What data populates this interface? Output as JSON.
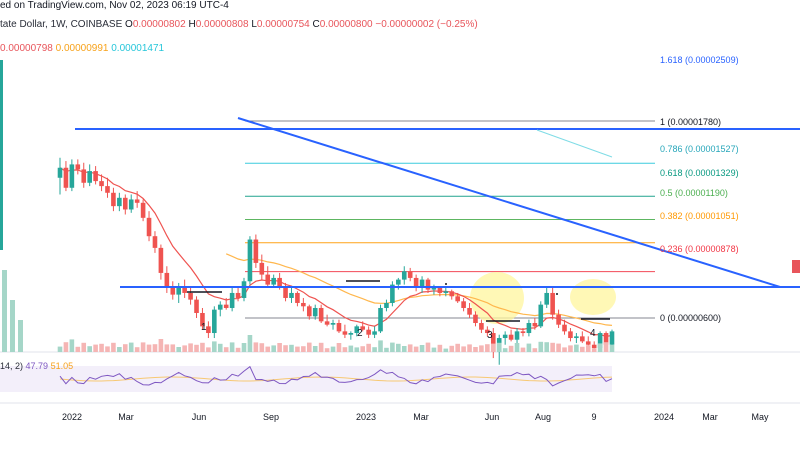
{
  "header": {
    "published": "ed on TradingView.com, Nov 02, 2023 06:19 UTC-4",
    "symbol": "tate Dollar, 1W, COINBASE",
    "ohlc": [
      {
        "label": "O",
        "value": "0.00000802"
      },
      {
        "label": "H",
        "value": "0.00000808"
      },
      {
        "label": "L",
        "value": "0.00000754"
      },
      {
        "label": "C",
        "value": "0.00000800"
      }
    ],
    "change": "−0.00000002 (−0.25%)",
    "indicators": [
      {
        "text": "0.00000798",
        "color": "#e8555b"
      },
      {
        "text": "0.00000991",
        "color": "#f7a21b"
      },
      {
        "text": "0.00001471",
        "color": "#26c6da"
      }
    ]
  },
  "colors": {
    "up": "#26a69a",
    "down": "#ef5350",
    "trend": "#2962ff",
    "ema_red": "#ef5350",
    "ema_orange": "#ffb74d",
    "rsi": "#7e57c2",
    "rsi_ma": "#f7c873",
    "highlight": "#fff59d"
  },
  "chart_data": {
    "type": "candlestick",
    "title": "",
    "x_ticks": [
      "2022",
      "Mar",
      "Jun",
      "Sep",
      "2023",
      "Mar",
      "Jun",
      "Aug",
      "9",
      "2024",
      "Mar",
      "May"
    ],
    "fib_levels": [
      {
        "label": "1.618 (0.00002509)",
        "price": 2.509e-05,
        "color": "#2962ff"
      },
      {
        "label": "1 (0.00001780)",
        "price": 1.78e-05,
        "color": "#787b86"
      },
      {
        "label": "0.786 (0.00001527)",
        "price": 1.527e-05,
        "color": "#26c6da"
      },
      {
        "label": "0.618 (0.00001329)",
        "price": 1.329e-05,
        "color": "#089981"
      },
      {
        "label": "0.5 (0.00001190)",
        "price": 1.19e-05,
        "color": "#4caf50"
      },
      {
        "label": "0.382 (0.00001051)",
        "price": 1.051e-05,
        "color": "#ff9800"
      },
      {
        "label": "0.236 (0.00000878)",
        "price": 8.78e-06,
        "color": "#f23645"
      },
      {
        "label": "0 (0.00000600)",
        "price": 6e-06,
        "color": "#787b86"
      }
    ],
    "wave_labels": [
      "1",
      "2",
      "3",
      "4"
    ],
    "rsi": {
      "label": "14, 2)",
      "value": "47.79",
      "ma": "51.05"
    },
    "candles": [
      [
        11.8,
        13.0,
        10.8,
        12.4
      ],
      [
        12.4,
        12.8,
        11.0,
        11.2
      ],
      [
        11.2,
        12.9,
        11.0,
        12.6
      ],
      [
        12.6,
        12.9,
        12.0,
        12.3
      ],
      [
        12.3,
        12.7,
        11.2,
        11.5
      ],
      [
        11.5,
        12.6,
        11.3,
        12.2
      ],
      [
        12.2,
        12.5,
        11.4,
        11.6
      ],
      [
        11.6,
        12.0,
        11.0,
        11.3
      ],
      [
        11.3,
        11.8,
        10.6,
        10.9
      ],
      [
        10.9,
        11.2,
        9.8,
        10.1
      ],
      [
        10.1,
        10.9,
        9.8,
        10.6
      ],
      [
        10.6,
        10.8,
        9.6,
        9.9
      ],
      [
        9.9,
        10.8,
        9.7,
        10.5
      ],
      [
        10.5,
        11.0,
        10.0,
        10.3
      ],
      [
        10.3,
        10.5,
        9.2,
        9.4
      ],
      [
        9.4,
        9.8,
        8.0,
        8.3
      ],
      [
        8.3,
        8.6,
        7.3,
        7.6
      ],
      [
        7.6,
        7.8,
        5.7,
        6.1
      ],
      [
        6.1,
        6.5,
        4.9,
        5.2
      ],
      [
        5.2,
        5.6,
        4.5,
        4.8
      ],
      [
        4.8,
        5.5,
        4.3,
        5.3
      ],
      [
        5.3,
        5.7,
        4.6,
        4.9
      ],
      [
        4.9,
        5.3,
        4.2,
        4.5
      ],
      [
        4.5,
        4.7,
        3.4,
        3.7
      ],
      [
        3.7,
        4.0,
        2.7,
        2.9
      ],
      [
        2.9,
        3.2,
        2.2,
        2.5
      ],
      [
        2.5,
        4.1,
        2.2,
        3.9
      ],
      [
        3.9,
        4.4,
        3.5,
        4.2
      ],
      [
        4.2,
        4.6,
        3.9,
        4.0
      ],
      [
        4.0,
        5.2,
        3.8,
        4.9
      ],
      [
        4.9,
        5.2,
        4.4,
        4.6
      ],
      [
        4.6,
        5.8,
        4.4,
        5.6
      ],
      [
        5.6,
        8.3,
        5.4,
        8.1
      ],
      [
        8.1,
        8.4,
        6.4,
        6.7
      ],
      [
        6.7,
        7.2,
        5.7,
        6.0
      ],
      [
        6.0,
        6.5,
        5.2,
        5.4
      ],
      [
        5.4,
        6.0,
        5.2,
        5.8
      ],
      [
        5.8,
        6.1,
        5.1,
        5.3
      ],
      [
        5.3,
        5.5,
        4.4,
        4.6
      ],
      [
        4.6,
        5.2,
        4.3,
        4.9
      ],
      [
        4.9,
        5.0,
        4.1,
        4.3
      ],
      [
        4.3,
        4.6,
        3.8,
        4.1
      ],
      [
        4.1,
        4.2,
        3.3,
        3.5
      ],
      [
        3.5,
        4.2,
        3.3,
        4.0
      ],
      [
        4.0,
        4.2,
        3.1,
        3.2
      ],
      [
        3.2,
        3.6,
        2.9,
        3.0
      ],
      [
        3.0,
        3.3,
        2.7,
        3.1
      ],
      [
        3.1,
        3.3,
        2.5,
        2.6
      ],
      [
        2.6,
        3.0,
        2.2,
        2.4
      ],
      [
        2.4,
        2.6,
        2.1,
        2.5
      ],
      [
        2.5,
        3.0,
        2.3,
        2.9
      ],
      [
        2.9,
        3.2,
        2.6,
        2.7
      ],
      [
        2.7,
        2.9,
        2.2,
        2.4
      ],
      [
        2.4,
        2.9,
        2.2,
        2.6
      ],
      [
        2.6,
        4.2,
        2.5,
        4.0
      ],
      [
        4.0,
        4.5,
        3.8,
        4.3
      ],
      [
        4.3,
        5.6,
        4.1,
        5.4
      ],
      [
        5.4,
        5.8,
        5.1,
        5.7
      ],
      [
        5.7,
        6.5,
        5.4,
        6.2
      ],
      [
        6.2,
        6.4,
        5.6,
        5.8
      ],
      [
        5.8,
        6.0,
        5.0,
        5.2
      ],
      [
        5.2,
        5.9,
        4.9,
        5.7
      ],
      [
        5.7,
        5.8,
        4.9,
        5.1
      ],
      [
        5.1,
        5.4,
        4.8,
        5.2
      ],
      [
        5.2,
        5.3,
        4.7,
        4.9
      ],
      [
        4.9,
        5.2,
        4.7,
        5.0
      ],
      [
        5.0,
        5.1,
        4.5,
        4.7
      ],
      [
        4.7,
        4.9,
        4.3,
        4.4
      ],
      [
        4.4,
        4.6,
        3.8,
        4.0
      ],
      [
        4.0,
        4.3,
        3.4,
        3.6
      ],
      [
        3.6,
        3.8,
        2.9,
        3.1
      ],
      [
        3.1,
        3.3,
        2.5,
        2.7
      ],
      [
        2.7,
        2.9,
        2.3,
        2.5
      ],
      [
        2.5,
        2.8,
        1.0,
        1.4
      ],
      [
        1.4,
        2.4,
        0.6,
        2.2
      ],
      [
        2.2,
        2.6,
        1.8,
        2.4
      ],
      [
        2.4,
        2.7,
        2.0,
        2.1
      ],
      [
        2.1,
        2.8,
        1.9,
        2.6
      ],
      [
        2.6,
        2.8,
        2.3,
        2.5
      ],
      [
        2.5,
        3.3,
        2.3,
        3.1
      ],
      [
        3.1,
        3.4,
        2.7,
        2.9
      ],
      [
        2.9,
        4.4,
        2.8,
        4.2
      ],
      [
        4.2,
        5.3,
        4.0,
        4.9
      ],
      [
        4.9,
        5.2,
        3.3,
        3.6
      ],
      [
        3.6,
        3.9,
        2.8,
        3.0
      ],
      [
        3.0,
        3.3,
        2.4,
        2.6
      ],
      [
        2.6,
        2.8,
        2.0,
        2.2
      ],
      [
        2.2,
        2.5,
        1.9,
        2.3
      ],
      [
        2.3,
        2.6,
        1.9,
        2.0
      ],
      [
        2.0,
        2.3,
        1.6,
        1.8
      ],
      [
        1.8,
        2.0,
        1.4,
        1.6
      ],
      [
        1.6,
        2.6,
        1.5,
        2.5
      ],
      [
        2.5,
        2.6,
        1.5,
        1.8
      ],
      [
        1.8,
        2.7,
        1.6,
        2.6
      ]
    ]
  }
}
